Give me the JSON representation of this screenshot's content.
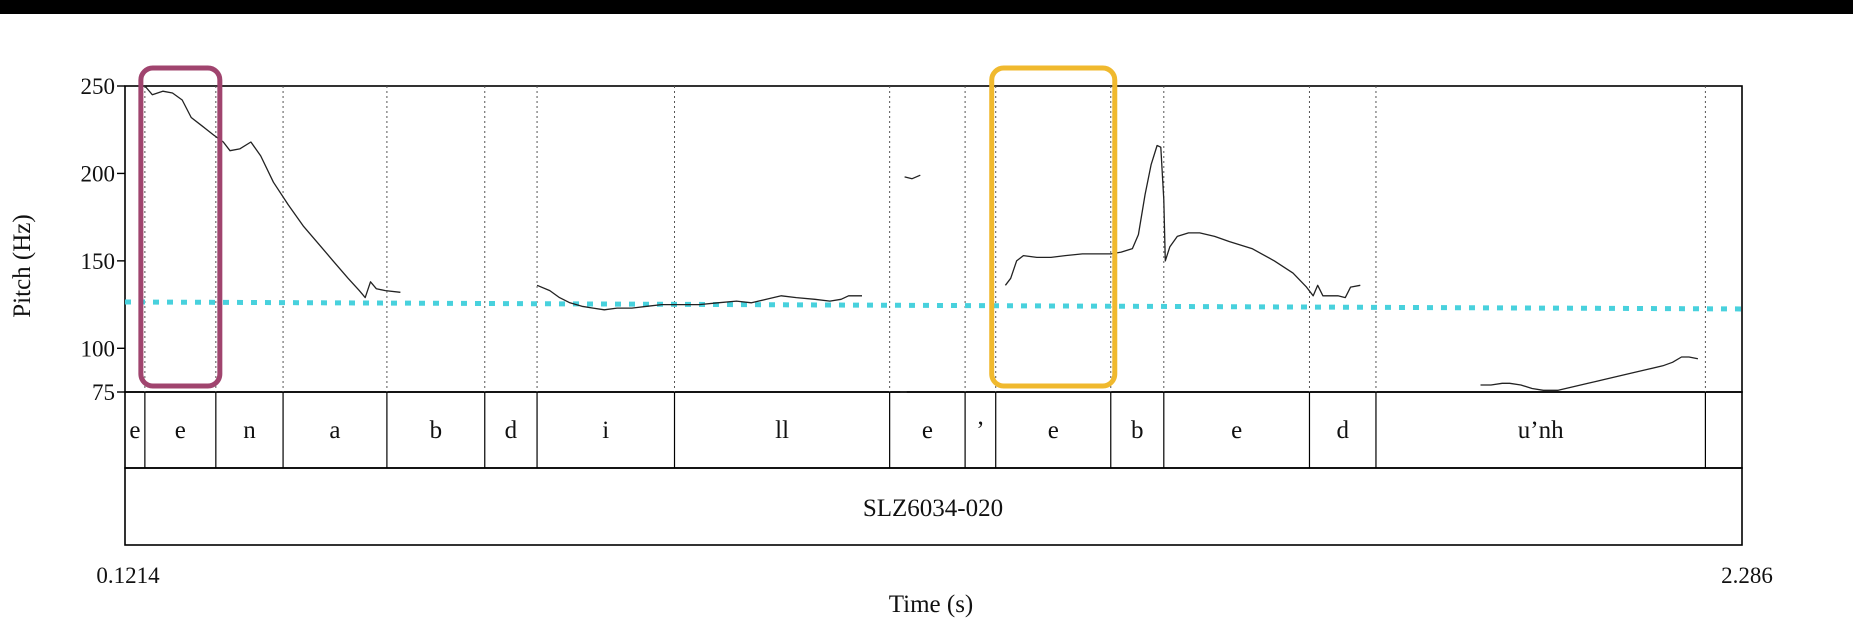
{
  "chart_data": {
    "type": "line",
    "xlabel": "Time (s)",
    "ylabel": "Pitch (Hz)",
    "xlim": [
      0.1214,
      2.286
    ],
    "ylim": [
      75,
      250
    ],
    "x_tick_labels": [
      "0.1214",
      "2.286"
    ],
    "y_ticks": [
      75,
      100,
      150,
      200,
      250
    ],
    "grid": false,
    "segments": [
      {
        "label": "e",
        "start": 0.1214,
        "end": 0.148
      },
      {
        "label": "e",
        "start": 0.148,
        "end": 0.243
      },
      {
        "label": "n",
        "start": 0.243,
        "end": 0.333
      },
      {
        "label": "a",
        "start": 0.333,
        "end": 0.472
      },
      {
        "label": "b",
        "start": 0.472,
        "end": 0.603
      },
      {
        "label": "d",
        "start": 0.603,
        "end": 0.673
      },
      {
        "label": "i",
        "start": 0.673,
        "end": 0.857
      },
      {
        "label": "ll",
        "start": 0.857,
        "end": 1.145
      },
      {
        "label": "e",
        "start": 1.145,
        "end": 1.246
      },
      {
        "label": "’",
        "start": 1.246,
        "end": 1.287
      },
      {
        "label": "e",
        "start": 1.287,
        "end": 1.441
      },
      {
        "label": "b",
        "start": 1.441,
        "end": 1.512
      },
      {
        "label": "e",
        "start": 1.512,
        "end": 1.707
      },
      {
        "label": "d",
        "start": 1.707,
        "end": 1.796
      },
      {
        "label": "u’nh",
        "start": 1.796,
        "end": 2.237
      },
      {
        "label": "",
        "start": 2.237,
        "end": 2.286
      }
    ],
    "utterance_label": "SLZ6034-020",
    "pitch_series": [
      [
        [
          0.148,
          250
        ],
        [
          0.158,
          245
        ],
        [
          0.172,
          247
        ],
        [
          0.185,
          246
        ],
        [
          0.198,
          242
        ],
        [
          0.21,
          232
        ],
        [
          0.225,
          227
        ],
        [
          0.24,
          222
        ],
        [
          0.253,
          218
        ],
        [
          0.262,
          213
        ],
        [
          0.275,
          214
        ],
        [
          0.29,
          218
        ],
        [
          0.303,
          210
        ],
        [
          0.32,
          195
        ],
        [
          0.34,
          182
        ],
        [
          0.36,
          170
        ],
        [
          0.38,
          160
        ],
        [
          0.4,
          150
        ],
        [
          0.42,
          140
        ],
        [
          0.435,
          133
        ],
        [
          0.443,
          129
        ],
        [
          0.45,
          138
        ],
        [
          0.458,
          134
        ],
        [
          0.47,
          133
        ],
        [
          0.49,
          132
        ]
      ],
      [
        [
          0.673,
          136
        ],
        [
          0.69,
          133
        ],
        [
          0.703,
          129
        ],
        [
          0.717,
          126
        ],
        [
          0.733,
          124
        ],
        [
          0.748,
          123
        ],
        [
          0.763,
          122
        ],
        [
          0.78,
          123
        ],
        [
          0.8,
          123
        ],
        [
          0.82,
          124
        ],
        [
          0.84,
          125
        ],
        [
          0.865,
          125
        ],
        [
          0.89,
          125
        ],
        [
          0.915,
          126
        ],
        [
          0.94,
          127
        ],
        [
          0.96,
          126
        ],
        [
          0.98,
          128
        ],
        [
          1.0,
          130
        ],
        [
          1.02,
          129
        ],
        [
          1.045,
          128
        ],
        [
          1.065,
          127
        ],
        [
          1.08,
          128
        ],
        [
          1.09,
          130
        ],
        [
          1.108,
          130
        ]
      ],
      [
        [
          1.165,
          198
        ],
        [
          1.175,
          197
        ],
        [
          1.186,
          199
        ]
      ],
      [
        [
          1.159,
          75
        ],
        [
          1.168,
          75
        ]
      ],
      [
        [
          1.3,
          136
        ],
        [
          1.307,
          140
        ],
        [
          1.315,
          150
        ],
        [
          1.324,
          153
        ],
        [
          1.342,
          152
        ],
        [
          1.361,
          152
        ],
        [
          1.38,
          153
        ],
        [
          1.403,
          154
        ],
        [
          1.42,
          154
        ],
        [
          1.441,
          154
        ],
        [
          1.455,
          155
        ],
        [
          1.47,
          157
        ],
        [
          1.478,
          165
        ],
        [
          1.487,
          188
        ],
        [
          1.495,
          205
        ],
        [
          1.503,
          216
        ],
        [
          1.508,
          215
        ],
        [
          1.512,
          185
        ],
        [
          1.514,
          150
        ],
        [
          1.52,
          158
        ],
        [
          1.53,
          164
        ],
        [
          1.545,
          166
        ],
        [
          1.56,
          166
        ],
        [
          1.58,
          164
        ],
        [
          1.6,
          161
        ],
        [
          1.63,
          157
        ],
        [
          1.66,
          150
        ],
        [
          1.685,
          143
        ],
        [
          1.703,
          135
        ],
        [
          1.712,
          130
        ],
        [
          1.718,
          136
        ],
        [
          1.725,
          130
        ],
        [
          1.733,
          130
        ],
        [
          1.745,
          130
        ],
        [
          1.755,
          129
        ],
        [
          1.762,
          135
        ],
        [
          1.775,
          136
        ]
      ],
      [
        [
          1.936,
          79
        ],
        [
          1.95,
          79
        ],
        [
          1.965,
          80
        ],
        [
          1.975,
          80
        ],
        [
          1.99,
          79
        ],
        [
          2.005,
          77
        ],
        [
          2.02,
          76
        ],
        [
          2.04,
          76
        ],
        [
          2.06,
          78
        ],
        [
          2.08,
          80
        ],
        [
          2.1,
          82
        ],
        [
          2.12,
          84
        ],
        [
          2.14,
          86
        ],
        [
          2.16,
          88
        ],
        [
          2.18,
          90
        ],
        [
          2.193,
          92
        ],
        [
          2.205,
          95
        ],
        [
          2.215,
          95
        ],
        [
          2.227,
          94
        ]
      ]
    ],
    "reference_line": {
      "color": "#48D1DD",
      "y_start": 126.5,
      "y_end": 122.5
    },
    "highlight_boxes": [
      {
        "color": "#A0446E",
        "x_start": 0.148,
        "x_end": 0.243,
        "y_low": 75,
        "y_high": 250
      },
      {
        "color": "#F0B92E",
        "x_start": 1.287,
        "x_end": 1.441,
        "y_low": 75,
        "y_high": 250
      }
    ]
  }
}
